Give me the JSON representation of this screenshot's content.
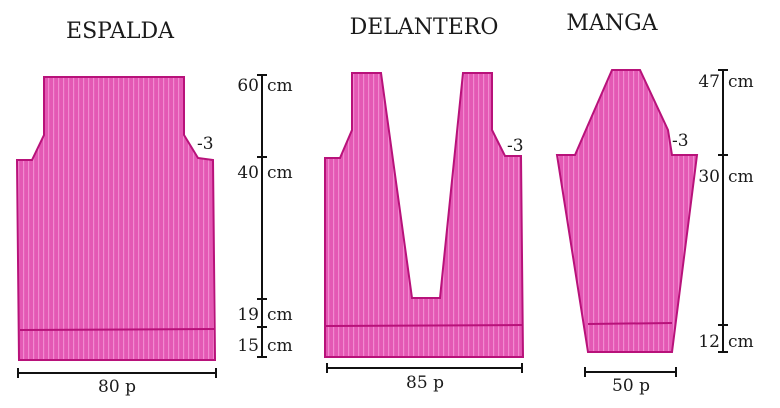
{
  "pieces": {
    "espalda": {
      "title": "ESPALDA",
      "width": "80 p",
      "decrease": "-3",
      "heights": [
        "60",
        "40",
        "19",
        "15"
      ],
      "unit": "cm"
    },
    "delantero": {
      "title": "DELANTERO",
      "width": "85 p",
      "decrease": "-3"
    },
    "manga": {
      "title": "MANGA",
      "width": "50 p",
      "decrease": "-3",
      "heights": [
        "47",
        "30",
        "12"
      ],
      "unit": "cm"
    }
  },
  "colors": {
    "fabric": "#e458b4",
    "outline": "#b8127a"
  }
}
